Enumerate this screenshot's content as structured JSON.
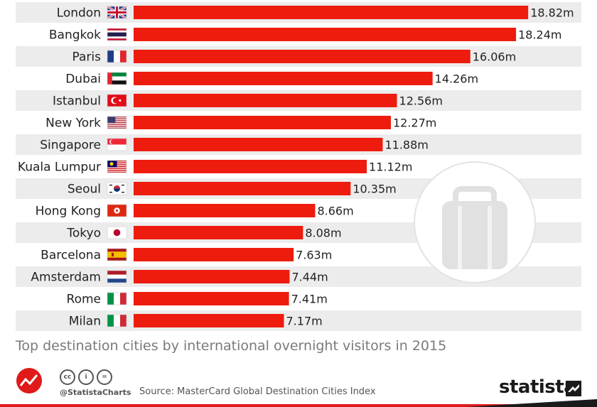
{
  "chart_data": {
    "type": "bar",
    "orientation": "horizontal",
    "categories": [
      "London",
      "Bangkok",
      "Paris",
      "Dubai",
      "Istanbul",
      "New York",
      "Singapore",
      "Kuala Lumpur",
      "Seoul",
      "Hong Kong",
      "Tokyo",
      "Barcelona",
      "Amsterdam",
      "Rome",
      "Milan"
    ],
    "values": [
      18.82,
      18.24,
      16.06,
      14.26,
      12.56,
      12.27,
      11.88,
      11.12,
      10.35,
      8.66,
      8.08,
      7.63,
      7.44,
      7.41,
      7.17
    ],
    "value_labels": [
      "18.82m",
      "18.24m",
      "16.06m",
      "14.26m",
      "12.56m",
      "12.27m",
      "11.88m",
      "11.12m",
      "10.35m",
      "8.66m",
      "8.08m",
      "7.63m",
      "7.44m",
      "7.41m",
      "7.17m"
    ],
    "flags": [
      "uk-flag",
      "thailand-flag",
      "france-flag",
      "uae-flag",
      "turkey-flag",
      "usa-flag",
      "singapore-flag",
      "malaysia-flag",
      "south-korea-flag",
      "hong-kong-flag",
      "japan-flag",
      "spain-flag",
      "netherlands-flag",
      "italy-flag",
      "italy-flag"
    ],
    "caption": "Top destination cities by international overnight visitors in 2015",
    "bar_color": "#ee1c0e",
    "grid": false
  },
  "footer": {
    "handle": "@StatistaCharts",
    "source": "Source: MasterCard Global Destination Cities Index",
    "brand": "statista",
    "cc_icons": [
      "cc",
      "i",
      "="
    ]
  },
  "decor": {
    "background_icon": "suitcase-icon"
  }
}
